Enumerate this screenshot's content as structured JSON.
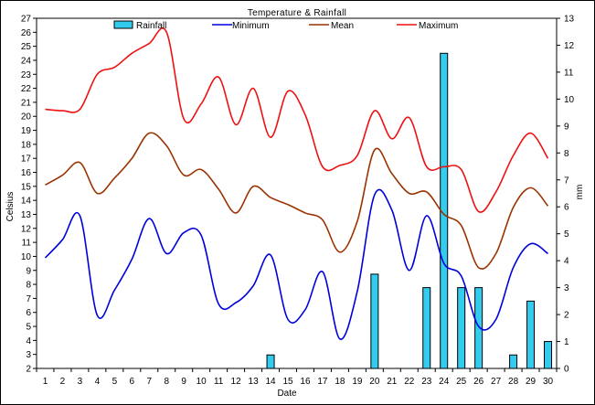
{
  "chart_data": {
    "type": "line",
    "title": "Temperature & Rainfall",
    "xlabel": "Date",
    "ylabel_left": "Celsius",
    "ylabel_right": "mm",
    "x": [
      1,
      2,
      3,
      4,
      5,
      6,
      7,
      8,
      9,
      10,
      11,
      12,
      13,
      14,
      15,
      16,
      17,
      18,
      19,
      20,
      21,
      22,
      23,
      24,
      25,
      26,
      27,
      28,
      29,
      30
    ],
    "ylim_left": [
      2,
      27
    ],
    "ylim_right": [
      0,
      13
    ],
    "yticks_left": [
      2,
      3,
      4,
      5,
      6,
      7,
      8,
      9,
      10,
      11,
      12,
      13,
      14,
      15,
      16,
      17,
      18,
      19,
      20,
      21,
      22,
      23,
      24,
      25,
      26,
      27
    ],
    "yticks_right": [
      0,
      1,
      2,
      3,
      4,
      5,
      6,
      7,
      8,
      9,
      10,
      11,
      12,
      13
    ],
    "legend": [
      "Rainfall",
      "Minimum",
      "Mean",
      "Maximum"
    ],
    "legend_position": "top",
    "colors": {
      "rainfall": "#33CCEE",
      "minimum": "#0000DD",
      "mean": "#993300",
      "maximum": "#EE1111"
    },
    "series": [
      {
        "name": "Rainfall",
        "kind": "bar",
        "axis": "right",
        "values": [
          0,
          0,
          0,
          0,
          0,
          0,
          0,
          0,
          0,
          0,
          0,
          0,
          0,
          0.5,
          0,
          0,
          0,
          0,
          0,
          3.5,
          0,
          0,
          3,
          11.7,
          3,
          3,
          0,
          0.5,
          2.5,
          1
        ]
      },
      {
        "name": "Minimum",
        "kind": "line",
        "axis": "left",
        "values": [
          9.9,
          11.2,
          12.9,
          5.8,
          7.6,
          9.8,
          12.7,
          10.2,
          11.7,
          11.5,
          6.6,
          6.7,
          7.9,
          10.1,
          5.5,
          6.2,
          8.9,
          4.1,
          7.5,
          14.4,
          13.3,
          9.0,
          12.9,
          9.5,
          8.6,
          5.0,
          5.5,
          9.2,
          10.9,
          10.2
        ]
      },
      {
        "name": "Mean",
        "kind": "line",
        "axis": "left",
        "values": [
          15.1,
          15.8,
          16.7,
          14.5,
          15.6,
          17.0,
          18.8,
          17.9,
          15.8,
          16.2,
          14.8,
          13.1,
          15.0,
          14.2,
          13.7,
          13.1,
          12.6,
          10.3,
          12.5,
          17.6,
          15.9,
          14.5,
          14.6,
          13.0,
          12.2,
          9.2,
          10.2,
          13.5,
          14.9,
          13.6
        ]
      },
      {
        "name": "Maximum",
        "kind": "line",
        "axis": "left",
        "values": [
          20.5,
          20.4,
          20.5,
          23.0,
          23.5,
          24.5,
          25.2,
          26.0,
          19.8,
          20.9,
          22.8,
          19.4,
          22.0,
          18.5,
          21.8,
          20.1,
          16.4,
          16.5,
          17.2,
          20.4,
          18.4,
          19.9,
          16.4,
          16.4,
          16.2,
          13.2,
          14.6,
          17.2,
          18.8,
          17.0
        ]
      }
    ]
  }
}
